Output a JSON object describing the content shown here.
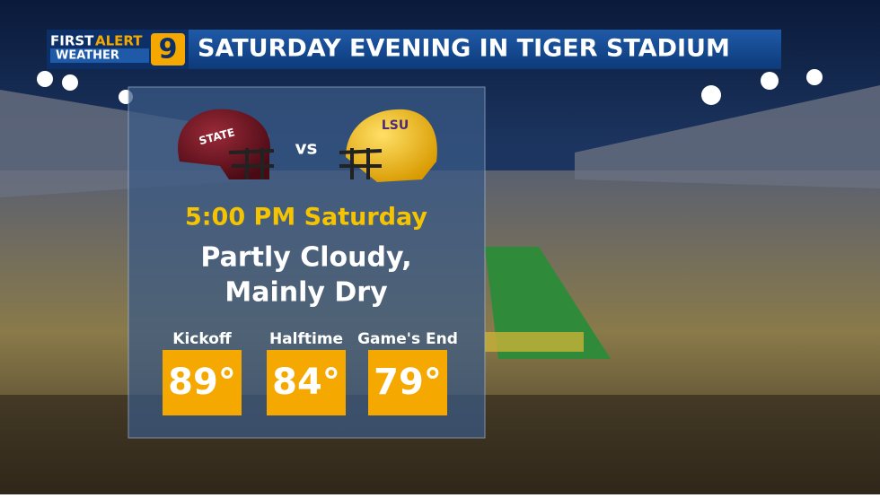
{
  "logo": {
    "first": "FIRST",
    "alert": "ALERT",
    "weather": "WEATHER",
    "channel": "9"
  },
  "header": {
    "title": "SATURDAY EVENING IN TIGER STADIUM"
  },
  "matchup": {
    "away_helmet": "STATE",
    "home_helmet": "LSU",
    "vs": "vs"
  },
  "forecast": {
    "time": "5:00 PM Saturday",
    "conditions": [
      "Partly Cloudy,",
      "Mainly Dry"
    ]
  },
  "temperatures": [
    {
      "label": "Kickoff",
      "value": "89°"
    },
    {
      "label": "Halftime",
      "value": "84°"
    },
    {
      "label": "Game's End",
      "value": "79°"
    }
  ]
}
